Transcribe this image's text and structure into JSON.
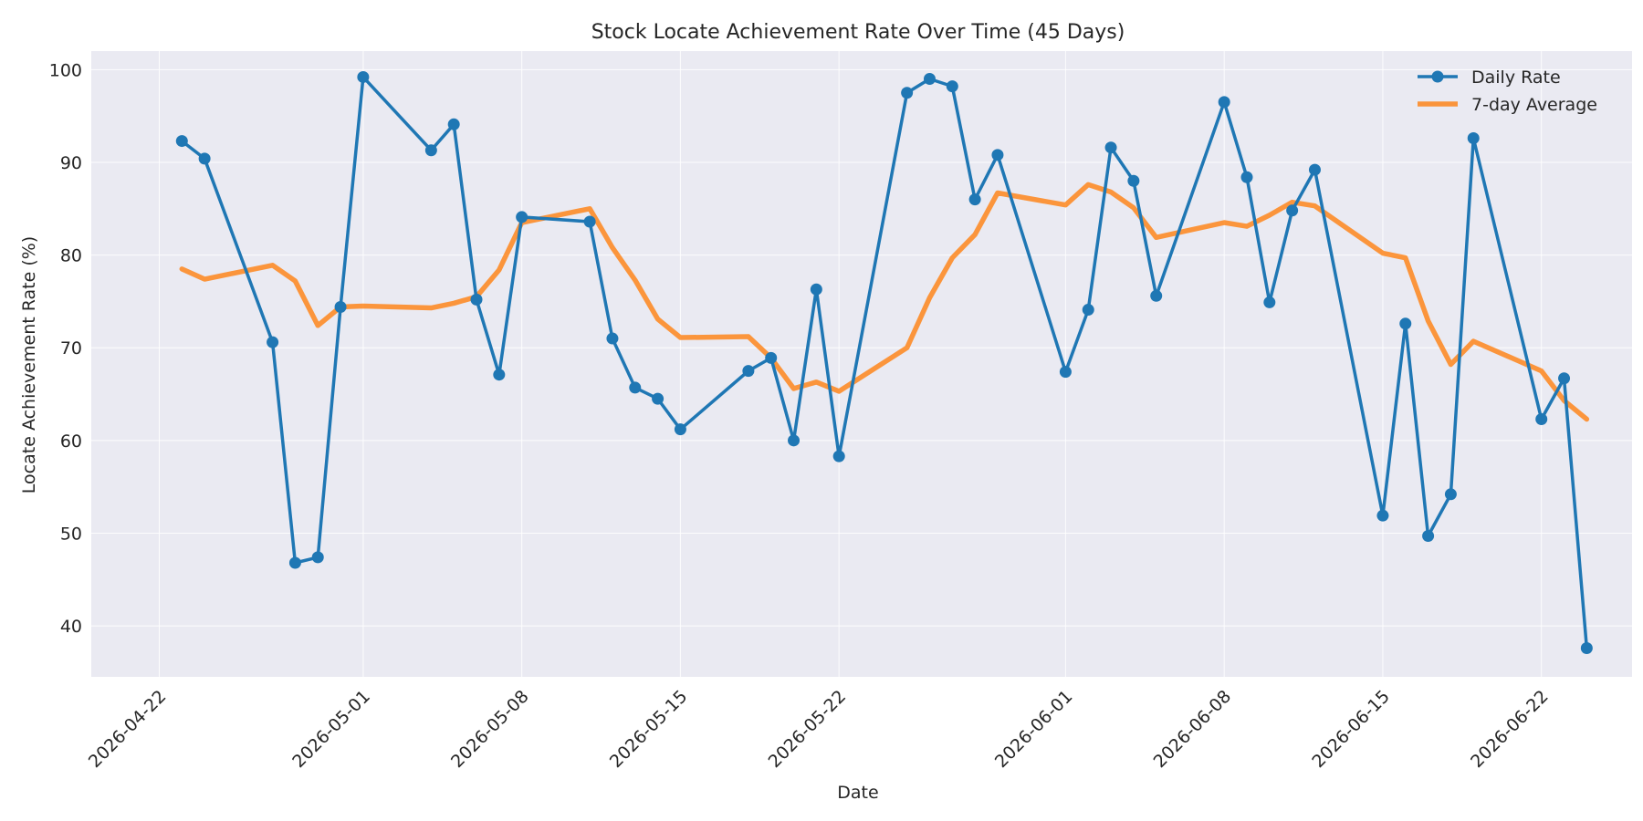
{
  "chart_data": {
    "type": "line",
    "title": "Stock Locate Achievement Rate Over Time (45 Days)",
    "xlabel": "Date",
    "ylabel": "Locate Achievement Rate (%)",
    "ylim": [
      34.5,
      102
    ],
    "xlim": [
      "2026-04-19",
      "2026-06-26"
    ],
    "grid": true,
    "legend_position": "top-right",
    "x_ticks": [
      "2026-04-22",
      "2026-05-01",
      "2026-05-08",
      "2026-05-15",
      "2026-05-22",
      "2026-06-01",
      "2026-06-08",
      "2026-06-15",
      "2026-06-22"
    ],
    "y_ticks": [
      40,
      50,
      60,
      70,
      80,
      90,
      100
    ],
    "x": [
      "2026-04-23",
      "2026-04-24",
      "2026-04-27",
      "2026-04-28",
      "2026-04-29",
      "2026-04-30",
      "2026-05-01",
      "2026-05-04",
      "2026-05-05",
      "2026-05-06",
      "2026-05-07",
      "2026-05-08",
      "2026-05-11",
      "2026-05-12",
      "2026-05-13",
      "2026-05-14",
      "2026-05-15",
      "2026-05-18",
      "2026-05-19",
      "2026-05-20",
      "2026-05-21",
      "2026-05-22",
      "2026-05-25",
      "2026-05-26",
      "2026-05-27",
      "2026-05-28",
      "2026-05-29",
      "2026-06-01",
      "2026-06-02",
      "2026-06-03",
      "2026-06-04",
      "2026-06-05",
      "2026-06-08",
      "2026-06-09",
      "2026-06-10",
      "2026-06-11",
      "2026-06-12",
      "2026-06-15",
      "2026-06-16",
      "2026-06-17",
      "2026-06-18",
      "2026-06-19",
      "2026-06-22",
      "2026-06-23",
      "2026-06-24"
    ],
    "series": [
      {
        "name": "Daily Rate",
        "color": "#1f77b4",
        "markers": true,
        "values": [
          92.3,
          90.4,
          70.6,
          46.8,
          47.4,
          74.4,
          99.2,
          91.3,
          94.1,
          75.2,
          67.1,
          84.1,
          83.6,
          71.0,
          65.7,
          64.5,
          61.2,
          67.5,
          68.9,
          60.0,
          76.3,
          58.3,
          97.5,
          99.0,
          98.2,
          86.0,
          90.8,
          67.4,
          74.1,
          91.6,
          88.0,
          75.6,
          96.5,
          88.4,
          74.9,
          84.8,
          89.2,
          51.9,
          72.6,
          49.7,
          54.2,
          92.6,
          62.3,
          66.7,
          37.6
        ]
      },
      {
        "name": "7-day Average",
        "color": "#ff7f0e",
        "markers": false,
        "values": [
          78.5,
          77.4,
          78.9,
          77.2,
          72.4,
          74.4,
          74.5,
          74.3,
          74.8,
          75.5,
          78.4,
          83.5,
          85.0,
          80.8,
          77.3,
          73.1,
          71.1,
          71.2,
          68.9,
          65.6,
          66.3,
          65.3,
          70.0,
          75.4,
          79.7,
          82.2,
          86.7,
          85.4,
          87.6,
          86.8,
          85.1,
          81.9,
          83.5,
          83.1,
          84.3,
          85.7,
          85.3,
          80.2,
          79.7,
          72.9,
          68.2,
          70.7,
          67.5,
          64.3,
          62.3
        ]
      }
    ]
  }
}
